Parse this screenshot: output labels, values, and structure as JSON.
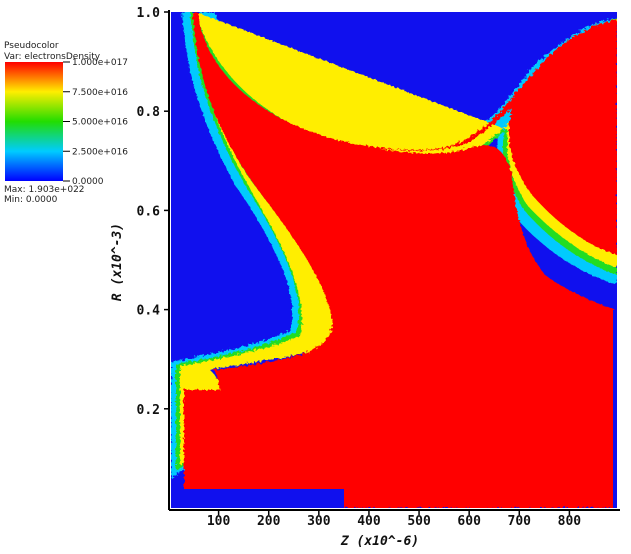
{
  "chart_data": {
    "type": "heatmap",
    "plot_type": "Pseudocolor",
    "variable": "Var: electronsDensity",
    "colorbar": {
      "title": "Pseudocolor",
      "var_label": "Var: electronsDensity",
      "tick_labels": [
        "1.000e+017",
        "7.500e+016",
        "5.000e+016",
        "2.500e+016",
        "0.0000"
      ],
      "tick_values": [
        1e+17,
        7.5e+16,
        5e+16,
        2.5e+16,
        0
      ],
      "range": [
        0,
        1e+17
      ],
      "max_label": "Max: 1.903e+022",
      "min_label": "Min: 0.0000"
    },
    "xlabel": "Z  (x10^-6)",
    "ylabel": "R  (x10^-3)",
    "xticks": [
      "100",
      "200",
      "300",
      "400",
      "500",
      "600",
      "700",
      "800"
    ],
    "xtick_values": [
      100,
      200,
      300,
      400,
      500,
      600,
      700,
      800
    ],
    "yticks": [
      "0.2",
      "0.4",
      "0.6",
      "0.8",
      "1.0"
    ],
    "ytick_values": [
      0.2,
      0.4,
      0.6,
      0.8,
      1.0
    ],
    "xlim": [
      5,
      895
    ],
    "ylim": [
      0,
      1.0
    ],
    "colors": {
      "low": "#1010ee",
      "high": "#ff0000",
      "frame": "#000000"
    }
  }
}
